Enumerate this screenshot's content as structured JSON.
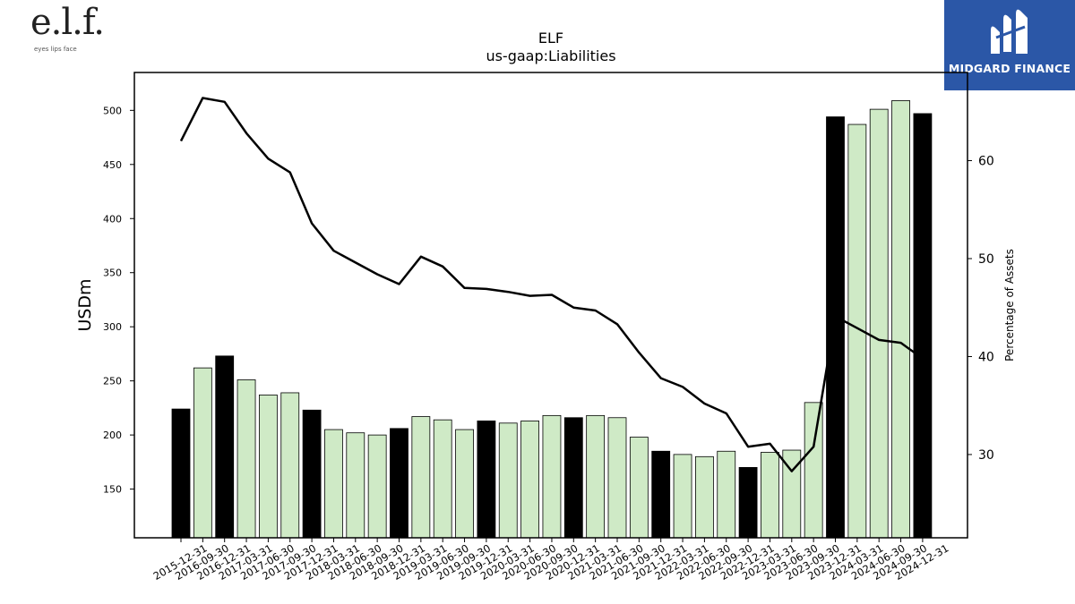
{
  "logo": {
    "mark": "e.l.f.",
    "tagline": "eyes lips face"
  },
  "brand": {
    "name": "MIDGARD FINANCE"
  },
  "colors": {
    "highlight_bar": "#000000",
    "bar": "#cfeac6",
    "line": "#000000",
    "brand_bg": "#2b57a7"
  },
  "chart_data": {
    "type": "bar",
    "title": "ELF",
    "subtitle": "us-gaap:Liabilities",
    "ylabel": "USDm",
    "y2label": "Percentage of Assets",
    "ylim": [
      105,
      535
    ],
    "y2lim": [
      21.5,
      69
    ],
    "yticks": [
      150,
      200,
      250,
      300,
      350,
      400,
      450,
      500
    ],
    "y2ticks": [
      30,
      40,
      50,
      60
    ],
    "grid": false,
    "categories": [
      "2015-12-31",
      "2016-09-30",
      "2016-12-31",
      "2017-03-31",
      "2017-06-30",
      "2017-09-30",
      "2017-12-31",
      "2018-03-31",
      "2018-06-30",
      "2018-09-30",
      "2018-12-31",
      "2019-03-31",
      "2019-06-30",
      "2019-09-30",
      "2019-12-31",
      "2020-03-31",
      "2020-06-30",
      "2020-09-30",
      "2020-12-31",
      "2021-03-31",
      "2021-06-30",
      "2021-09-30",
      "2021-12-31",
      "2022-03-31",
      "2022-06-30",
      "2022-09-30",
      "2022-12-31",
      "2023-03-31",
      "2023-06-30",
      "2023-09-30",
      "2023-12-31",
      "2024-03-31",
      "2024-06-30",
      "2024-09-30",
      "2024-12-31"
    ],
    "series": [
      {
        "type": "bar",
        "axis": "left",
        "values": [
          224,
          262,
          273,
          251,
          237,
          239,
          223,
          205,
          202,
          200,
          206,
          217,
          214,
          205,
          213,
          211,
          213,
          218,
          216,
          218,
          216,
          198,
          185,
          182,
          180,
          185,
          170,
          184,
          186,
          230,
          494,
          487,
          501,
          509,
          497
        ],
        "highlight": [
          true,
          false,
          true,
          false,
          false,
          false,
          true,
          false,
          false,
          false,
          true,
          false,
          false,
          false,
          true,
          false,
          false,
          false,
          true,
          false,
          false,
          false,
          true,
          false,
          false,
          false,
          true,
          false,
          false,
          false,
          true,
          false,
          false,
          false,
          true
        ]
      },
      {
        "type": "line",
        "axis": "right",
        "values": [
          62,
          66.4,
          66,
          62.8,
          60.2,
          58.8,
          53.6,
          50.8,
          49.6,
          48.4,
          47.4,
          50.2,
          49.2,
          47,
          46.9,
          46.6,
          46.2,
          46.3,
          45,
          44.7,
          43.3,
          40.4,
          37.8,
          36.9,
          35.2,
          34.2,
          30.8,
          31.1,
          28.3,
          30.8,
          44.1,
          42.9,
          41.7,
          41.4,
          39.8
        ]
      }
    ]
  }
}
